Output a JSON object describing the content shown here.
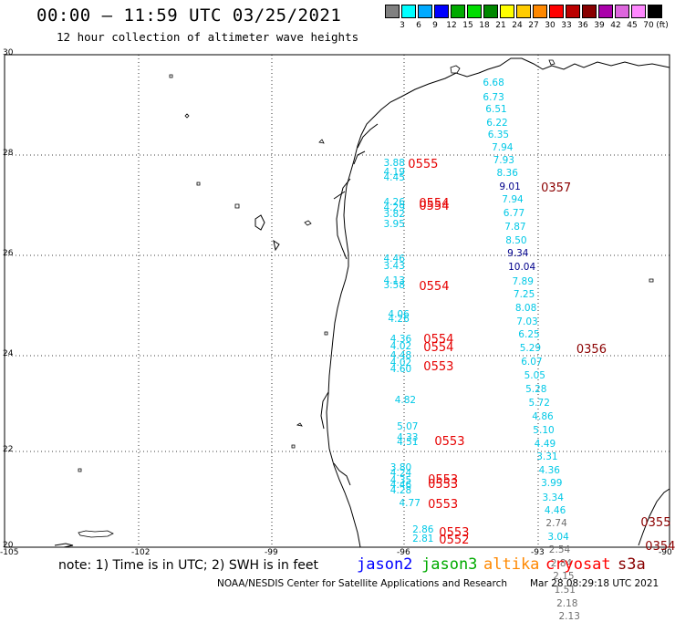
{
  "header": {
    "title": "00:00 – 11:59 UTC 03/25/2021",
    "subtitle": "12 hour collection of altimeter wave heights"
  },
  "legend": {
    "unit": "(ft)",
    "bins": [
      {
        "label": "3",
        "color": "#808080"
      },
      {
        "label": "6",
        "color": "#00ffff"
      },
      {
        "label": "9",
        "color": "#00aaff"
      },
      {
        "label": "12",
        "color": "#0000ff"
      },
      {
        "label": "15",
        "color": "#00aa00"
      },
      {
        "label": "18",
        "color": "#00dd00"
      },
      {
        "label": "21",
        "color": "#008800"
      },
      {
        "label": "24",
        "color": "#ffff00"
      },
      {
        "label": "27",
        "color": "#ffcc00"
      },
      {
        "label": "30",
        "color": "#ff8800"
      },
      {
        "label": "33",
        "color": "#ff0000"
      },
      {
        "label": "36",
        "color": "#bb0000"
      },
      {
        "label": "39",
        "color": "#880000"
      },
      {
        "label": "42",
        "color": "#aa00aa"
      },
      {
        "label": "45",
        "color": "#dd66dd"
      },
      {
        "label": "70",
        "color": "#ff88ff"
      },
      {
        "label": "",
        "color": "#000000"
      }
    ]
  },
  "axes": {
    "lat_labels": [
      "30",
      "28",
      "26",
      "24",
      "22",
      "20"
    ],
    "lon_labels": [
      "-105",
      "-102",
      "-99",
      "-96",
      "-93",
      "-90"
    ]
  },
  "colors": {
    "cyan": "#00c8e6",
    "navy": "#00008b",
    "gray": "#6e6e6e",
    "red": "#e60000",
    "darkred": "#8b0000"
  },
  "west_track": [
    {
      "v": "3.88",
      "lat": 27.77,
      "lon": -96.45
    },
    {
      "v": "4.19",
      "lat": 27.59,
      "lon": -96.45
    },
    {
      "v": "4.45",
      "lat": 27.49,
      "lon": -96.45
    },
    {
      "v": "4.26",
      "lat": 26.99,
      "lon": -96.45
    },
    {
      "v": "4.29",
      "lat": 26.88,
      "lon": -96.45
    },
    {
      "v": "3.82",
      "lat": 26.74,
      "lon": -96.45
    },
    {
      "v": "3.95",
      "lat": 26.53,
      "lon": -96.45
    },
    {
      "v": "4.46",
      "lat": 25.84,
      "lon": -96.45
    },
    {
      "v": "3.43",
      "lat": 25.68,
      "lon": -96.45
    },
    {
      "v": "4.13",
      "lat": 25.39,
      "lon": -96.45
    },
    {
      "v": "3.58",
      "lat": 25.29,
      "lon": -96.45
    },
    {
      "v": "4.06",
      "lat": 24.71,
      "lon": -96.35
    },
    {
      "v": "4.26",
      "lat": 24.61,
      "lon": -96.35
    },
    {
      "v": "4.36",
      "lat": 24.2,
      "lon": -96.3
    },
    {
      "v": "4.02",
      "lat": 24.06,
      "lon": -96.3
    },
    {
      "v": "4.48",
      "lat": 23.87,
      "lon": -96.3
    },
    {
      "v": "4.02",
      "lat": 23.73,
      "lon": -96.3
    },
    {
      "v": "4.60",
      "lat": 23.6,
      "lon": -96.3
    },
    {
      "v": "4.82",
      "lat": 22.97,
      "lon": -96.2
    },
    {
      "v": "5.07",
      "lat": 22.42,
      "lon": -96.15
    },
    {
      "v": "4.33",
      "lat": 22.2,
      "lon": -96.15
    },
    {
      "v": "4.51",
      "lat": 22.11,
      "lon": -96.15
    },
    {
      "v": "3.80",
      "lat": 21.6,
      "lon": -96.3
    },
    {
      "v": "4.24",
      "lat": 21.48,
      "lon": -96.3
    },
    {
      "v": "4.35",
      "lat": 21.34,
      "lon": -96.3
    },
    {
      "v": "4.46",
      "lat": 21.25,
      "lon": -96.3
    },
    {
      "v": "4.28",
      "lat": 21.13,
      "lon": -96.3
    },
    {
      "v": "4.77",
      "lat": 20.87,
      "lon": -96.1
    },
    {
      "v": "2.86",
      "lat": 20.33,
      "lon": -95.8
    },
    {
      "v": "2.81",
      "lat": 20.15,
      "lon": -95.8
    }
  ],
  "east_track": [
    {
      "v": "6.68",
      "lat": 29.4,
      "lon": -94.21,
      "c": "cyan"
    },
    {
      "v": "6.73",
      "lat": 29.12,
      "lon": -94.21,
      "c": "cyan"
    },
    {
      "v": "6.51",
      "lat": 28.87,
      "lon": -94.15,
      "c": "cyan"
    },
    {
      "v": "6.22",
      "lat": 28.6,
      "lon": -94.13,
      "c": "cyan"
    },
    {
      "v": "6.35",
      "lat": 28.36,
      "lon": -94.1,
      "c": "cyan"
    },
    {
      "v": "7.94",
      "lat": 28.09,
      "lon": -94.01,
      "c": "cyan"
    },
    {
      "v": "7.93",
      "lat": 27.83,
      "lon": -93.98,
      "c": "cyan"
    },
    {
      "v": "8.36",
      "lat": 27.57,
      "lon": -93.9,
      "c": "cyan"
    },
    {
      "v": "9.01",
      "lat": 27.3,
      "lon": -93.84,
      "c": "navy"
    },
    {
      "v": "7.94",
      "lat": 27.03,
      "lon": -93.78,
      "c": "cyan"
    },
    {
      "v": "6.77",
      "lat": 26.76,
      "lon": -93.75,
      "c": "cyan"
    },
    {
      "v": "7.87",
      "lat": 26.48,
      "lon": -93.72,
      "c": "cyan"
    },
    {
      "v": "8.50",
      "lat": 26.21,
      "lon": -93.7,
      "c": "cyan"
    },
    {
      "v": "9.34",
      "lat": 25.94,
      "lon": -93.66,
      "c": "navy"
    },
    {
      "v": "10.04",
      "lat": 25.67,
      "lon": -93.64,
      "c": "navy"
    },
    {
      "v": "7.89",
      "lat": 25.38,
      "lon": -93.55,
      "c": "cyan"
    },
    {
      "v": "7.25",
      "lat": 25.11,
      "lon": -93.52,
      "c": "cyan"
    },
    {
      "v": "8.08",
      "lat": 24.83,
      "lon": -93.48,
      "c": "cyan"
    },
    {
      "v": "7.03",
      "lat": 24.55,
      "lon": -93.45,
      "c": "cyan"
    },
    {
      "v": "6.25",
      "lat": 24.29,
      "lon": -93.41,
      "c": "cyan"
    },
    {
      "v": "5.29",
      "lat": 24.02,
      "lon": -93.38,
      "c": "cyan"
    },
    {
      "v": "6.07",
      "lat": 23.74,
      "lon": -93.35,
      "c": "cyan"
    },
    {
      "v": "5.05",
      "lat": 23.47,
      "lon": -93.28,
      "c": "cyan"
    },
    {
      "v": "5.28",
      "lat": 23.18,
      "lon": -93.25,
      "c": "cyan"
    },
    {
      "v": "5.72",
      "lat": 22.9,
      "lon": -93.18,
      "c": "cyan"
    },
    {
      "v": "4.86",
      "lat": 22.63,
      "lon": -93.1,
      "c": "cyan"
    },
    {
      "v": "5.10",
      "lat": 22.36,
      "lon": -93.08,
      "c": "cyan"
    },
    {
      "v": "4.49",
      "lat": 22.08,
      "lon": -93.05,
      "c": "cyan"
    },
    {
      "v": "3.31",
      "lat": 21.81,
      "lon": -93.0,
      "c": "cyan"
    },
    {
      "v": "4.36",
      "lat": 21.53,
      "lon": -92.95,
      "c": "cyan"
    },
    {
      "v": "3.99",
      "lat": 21.27,
      "lon": -92.9,
      "c": "cyan"
    },
    {
      "v": "3.34",
      "lat": 20.99,
      "lon": -92.87,
      "c": "cyan"
    },
    {
      "v": "4.46",
      "lat": 20.72,
      "lon": -92.82,
      "c": "cyan"
    },
    {
      "v": "2.74",
      "lat": 20.47,
      "lon": -92.79,
      "c": "gray"
    },
    {
      "v": "3.04",
      "lat": 20.19,
      "lon": -92.75,
      "c": "cyan"
    },
    {
      "v": "2.54",
      "lat": 19.92,
      "lon": -92.72,
      "c": "gray"
    },
    {
      "v": "2.84",
      "lat": 19.65,
      "lon": -92.68,
      "c": "gray"
    },
    {
      "v": "2.15",
      "lat": 19.39,
      "lon": -92.63,
      "c": "gray"
    },
    {
      "v": "1.51",
      "lat": 19.12,
      "lon": -92.6,
      "c": "gray"
    },
    {
      "v": "2.18",
      "lat": 18.84,
      "lon": -92.55,
      "c": "gray"
    },
    {
      "v": "2.13",
      "lat": 18.57,
      "lon": -92.5,
      "c": "gray"
    }
  ],
  "passes": [
    {
      "t": "0555",
      "lat": 27.77,
      "lon": -95.9,
      "c": "red"
    },
    {
      "t": "0554",
      "lat": 26.98,
      "lon": -95.65,
      "c": "red"
    },
    {
      "t": "0554",
      "lat": 26.92,
      "lon": -95.65,
      "c": "red"
    },
    {
      "t": "0554",
      "lat": 25.29,
      "lon": -95.65,
      "c": "red"
    },
    {
      "t": "0554",
      "lat": 24.22,
      "lon": -95.55,
      "c": "red"
    },
    {
      "t": "0554",
      "lat": 24.05,
      "lon": -95.55,
      "c": "red"
    },
    {
      "t": "0553",
      "lat": 23.67,
      "lon": -95.55,
      "c": "red"
    },
    {
      "t": "0553",
      "lat": 22.14,
      "lon": -95.3,
      "c": "red"
    },
    {
      "t": "0553",
      "lat": 21.37,
      "lon": -95.45,
      "c": "red"
    },
    {
      "t": "0553",
      "lat": 21.27,
      "lon": -95.45,
      "c": "red"
    },
    {
      "t": "0553",
      "lat": 20.88,
      "lon": -95.45,
      "c": "red"
    },
    {
      "t": "0553",
      "lat": 20.3,
      "lon": -95.2,
      "c": "red"
    },
    {
      "t": "0552",
      "lat": 20.14,
      "lon": -95.2,
      "c": "red"
    },
    {
      "t": "0357",
      "lat": 27.3,
      "lon": -92.9,
      "c": "darkred"
    },
    {
      "t": "0356",
      "lat": 24.02,
      "lon": -92.1,
      "c": "darkred"
    },
    {
      "t": "0355",
      "lat": 20.51,
      "lon": -90.65,
      "c": "darkred"
    },
    {
      "t": "0354",
      "lat": 20.02,
      "lon": -90.55,
      "c": "darkred"
    }
  ],
  "footer": {
    "note": "note: 1) Time is in UTC; 2) SWH is in feet",
    "satellites": [
      {
        "name": "jason2",
        "color": "#0000ff"
      },
      {
        "name": "jason3",
        "color": "#00aa00"
      },
      {
        "name": "altika",
        "color": "#ff8800"
      },
      {
        "name": "cryosat",
        "color": "#ff0000"
      },
      {
        "name": "s3a",
        "color": "#880000"
      }
    ],
    "credit_left": "NOAA/NESDIS Center for Satellite Applications and Research",
    "credit_right": "Mar 28 08:29:18 UTC 2021"
  }
}
